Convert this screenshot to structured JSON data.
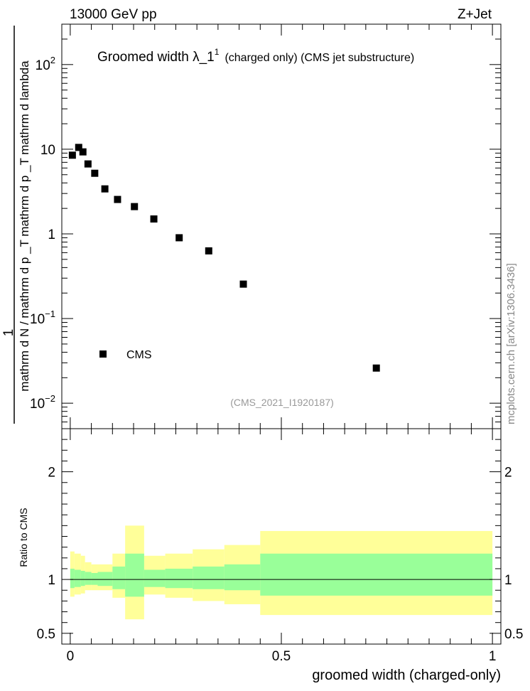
{
  "header": {
    "left": "13000 GeV pp",
    "right": "Z+Jet"
  },
  "side_label": "mcplots.cern.ch [arXiv:1306.3436]",
  "chart_data": [
    {
      "type": "scatter",
      "title_main": "Groomed width  λ_1",
      "title_sup": "1",
      "title_tail": "(charged only) (CMS jet substructure)",
      "ylabel_numerator": "1",
      "ylabel_denominator": "mathrm d N / mathrm d p _T mathrm d p _T mathrm d lambda",
      "yscale": "log",
      "ylim": [
        0.005,
        300
      ],
      "xlim": [
        -0.02,
        1.02
      ],
      "y_ticks": [
        {
          "value": 100,
          "base": "10",
          "exp": "2"
        },
        {
          "value": 10,
          "base": "10",
          "exp": ""
        },
        {
          "value": 1,
          "base": "1",
          "exp": ""
        },
        {
          "value": 0.1,
          "base": "10",
          "exp": "−1"
        },
        {
          "value": 0.01,
          "base": "10",
          "exp": "−2"
        }
      ],
      "watermark": "(CMS_2021_I1920187)",
      "legend": {
        "label": "CMS",
        "placement": "bottom-left"
      },
      "series": [
        {
          "name": "CMS",
          "x": [
            0.005,
            0.02,
            0.03,
            0.042,
            0.058,
            0.082,
            0.112,
            0.152,
            0.198,
            0.258,
            0.328,
            0.41,
            0.725
          ],
          "y": [
            8.5,
            10.5,
            9.3,
            6.7,
            5.2,
            3.4,
            2.55,
            2.1,
            1.5,
            0.9,
            0.63,
            0.255,
            0.026
          ]
        }
      ]
    },
    {
      "type": "area",
      "ylabel": "Ratio to CMS",
      "xlabel": "groomed width (charged-only)",
      "ylim": [
        0.4,
        2.4
      ],
      "xlim": [
        -0.02,
        1.02
      ],
      "y_ticks": [
        {
          "value": 2,
          "label": "2"
        },
        {
          "value": 1,
          "label": "1"
        },
        {
          "value": 0.5,
          "label": "0.5"
        }
      ],
      "x_ticks": [
        {
          "value": 0,
          "label": "0"
        },
        {
          "value": 0.5,
          "label": "0.5"
        },
        {
          "value": 1,
          "label": "1"
        }
      ],
      "reference_line": 1,
      "bands": [
        {
          "x0": 0.0,
          "x1": 0.01,
          "green_lo": 0.92,
          "green_hi": 1.1,
          "yellow_lo": 0.84,
          "yellow_hi": 1.26
        },
        {
          "x0": 0.01,
          "x1": 0.025,
          "green_lo": 0.93,
          "green_hi": 1.09,
          "yellow_lo": 0.86,
          "yellow_hi": 1.24
        },
        {
          "x0": 0.025,
          "x1": 0.035,
          "green_lo": 0.94,
          "green_hi": 1.08,
          "yellow_lo": 0.87,
          "yellow_hi": 1.22
        },
        {
          "x0": 0.035,
          "x1": 0.05,
          "green_lo": 0.95,
          "green_hi": 1.07,
          "yellow_lo": 0.9,
          "yellow_hi": 1.16
        },
        {
          "x0": 0.05,
          "x1": 0.065,
          "green_lo": 0.95,
          "green_hi": 1.06,
          "yellow_lo": 0.9,
          "yellow_hi": 1.14
        },
        {
          "x0": 0.065,
          "x1": 0.1,
          "green_lo": 0.94,
          "green_hi": 1.07,
          "yellow_lo": 0.9,
          "yellow_hi": 1.14
        },
        {
          "x0": 0.1,
          "x1": 0.13,
          "green_lo": 0.91,
          "green_hi": 1.12,
          "yellow_lo": 0.83,
          "yellow_hi": 1.24
        },
        {
          "x0": 0.13,
          "x1": 0.175,
          "green_lo": 0.84,
          "green_hi": 1.24,
          "yellow_lo": 0.63,
          "yellow_hi": 1.5
        },
        {
          "x0": 0.175,
          "x1": 0.225,
          "green_lo": 0.93,
          "green_hi": 1.09,
          "yellow_lo": 0.86,
          "yellow_hi": 1.22
        },
        {
          "x0": 0.225,
          "x1": 0.29,
          "green_lo": 0.92,
          "green_hi": 1.1,
          "yellow_lo": 0.83,
          "yellow_hi": 1.24
        },
        {
          "x0": 0.29,
          "x1": 0.365,
          "green_lo": 0.91,
          "green_hi": 1.12,
          "yellow_lo": 0.8,
          "yellow_hi": 1.28
        },
        {
          "x0": 0.365,
          "x1": 0.45,
          "green_lo": 0.9,
          "green_hi": 1.14,
          "yellow_lo": 0.77,
          "yellow_hi": 1.32
        },
        {
          "x0": 0.45,
          "x1": 1.0,
          "green_lo": 0.85,
          "green_hi": 1.24,
          "yellow_lo": 0.67,
          "yellow_hi": 1.45
        }
      ]
    }
  ]
}
